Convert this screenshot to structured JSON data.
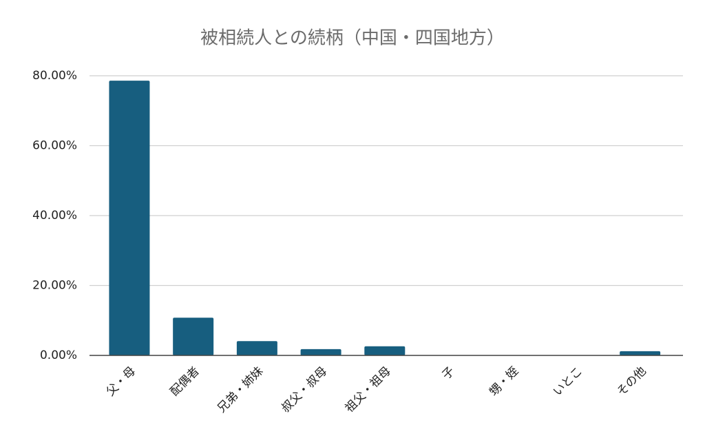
{
  "chart_data": {
    "type": "bar",
    "title": "被相続人との続柄（中国・四国地方）",
    "categories": [
      "父・母",
      "配偶者",
      "兄弟・姉妹",
      "叔父・叔母",
      "祖父・祖母",
      "子",
      "甥・姪",
      "いとこ",
      "その他"
    ],
    "values": [
      78.6,
      10.8,
      4.1,
      1.8,
      2.6,
      0,
      0,
      0,
      1.2
    ],
    "color": "#175e7f",
    "ylim": [
      0,
      80
    ],
    "yticks": [
      {
        "value": 0,
        "label": "0.00%"
      },
      {
        "value": 20,
        "label": "20.00%"
      },
      {
        "value": 40,
        "label": "40.00%"
      },
      {
        "value": 60,
        "label": "60.00%"
      },
      {
        "value": 80,
        "label": "80.00%"
      }
    ],
    "grid": true
  }
}
